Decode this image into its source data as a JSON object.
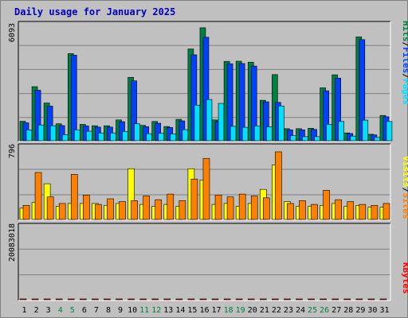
{
  "chart_data": {
    "type": "bar",
    "title": "Daily usage for January 2025",
    "categories": [
      "1",
      "2",
      "3",
      "4",
      "5",
      "6",
      "7",
      "8",
      "9",
      "10",
      "11",
      "12",
      "13",
      "14",
      "15",
      "16",
      "17",
      "18",
      "19",
      "20",
      "21",
      "22",
      "23",
      "24",
      "25",
      "26",
      "27",
      "28",
      "29",
      "30",
      "31"
    ],
    "weekend_days": [
      4,
      5,
      11,
      12,
      18,
      19,
      25,
      26
    ],
    "panels": [
      {
        "name": "requests",
        "max_label": "6093",
        "ymax": 6093,
        "right_label": [
          "Pages",
          "/",
          "Files",
          "/",
          "Hits"
        ],
        "series": [
          {
            "name": "Hits",
            "color": "#008040",
            "values": [
              1000,
              2780,
              1940,
              870,
              4480,
              840,
              770,
              770,
              1070,
              3260,
              790,
              990,
              730,
              1100,
              4720,
              5810,
              1070,
              4080,
              4090,
              4040,
              2080,
              3400,
              620,
              620,
              640,
              2720,
              3390,
              400,
              5340,
              330,
              1300
            ]
          },
          {
            "name": "Files",
            "color": "#0040ff",
            "values": [
              920,
              2600,
              1780,
              780,
              4400,
              760,
              700,
              700,
              980,
              3080,
              720,
              900,
              680,
              1020,
              4420,
              5320,
              990,
              3960,
              3970,
              3840,
              2000,
              1970,
              560,
              560,
              580,
              2570,
              3220,
              370,
              5200,
              300,
              1230
            ]
          },
          {
            "name": "Pages",
            "color": "#00e0ff",
            "values": [
              560,
              810,
              770,
              310,
              560,
              490,
              400,
              400,
              480,
              870,
              360,
              380,
              350,
              570,
              1830,
              2120,
              1920,
              740,
              690,
              760,
              720,
              1790,
              260,
              210,
              210,
              840,
              990,
              240,
              1060,
              170,
              990
            ]
          }
        ]
      },
      {
        "name": "visits",
        "max_label": "796",
        "ymax": 796,
        "right_label": [
          "Sites",
          "/",
          "Visits"
        ],
        "series": [
          {
            "name": "Visits",
            "color": "#ffff00",
            "values": [
              120,
              180,
              380,
              140,
              170,
              170,
              170,
              150,
              170,
              540,
              160,
              140,
              160,
              140,
              540,
              420,
              160,
              170,
              140,
              170,
              320,
              580,
              190,
              140,
              140,
              150,
              170,
              140,
              150,
              130,
              130
            ]
          },
          {
            "name": "Sites",
            "color": "#ff8000",
            "values": [
              150,
              500,
              240,
              170,
              480,
              260,
              160,
              220,
              190,
              200,
              250,
              210,
              270,
              200,
              430,
              650,
              260,
              240,
              270,
              250,
              230,
              720,
              170,
              200,
              160,
              310,
              210,
              190,
              160,
              150,
              170
            ]
          }
        ]
      },
      {
        "name": "kbytes",
        "max_label": "20083018",
        "ymax": 20083018,
        "right_label": [
          "KBytes"
        ],
        "series": [
          {
            "name": "KBytes",
            "color": "#ff0000",
            "values": [
              9800,
              7800,
              3900,
              3200,
              13800,
              4700,
              8000,
              4700,
              2700,
              5200,
              6000,
              5300,
              4700,
              5000,
              2200,
              5900,
              6400,
              15000,
              17800,
              10800,
              1600,
              5300,
              3500,
              2100,
              7200,
              6400,
              4800,
              8000,
              5100,
              3300,
              3300
            ]
          }
        ]
      }
    ],
    "xlabel": "",
    "grid": true
  }
}
